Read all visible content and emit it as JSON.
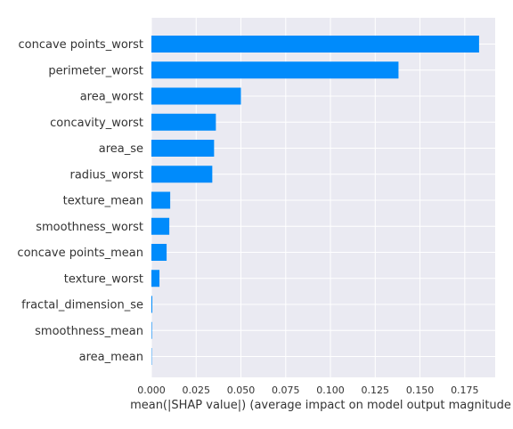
{
  "chart_data": {
    "type": "bar",
    "orientation": "horizontal",
    "categories": [
      "concave points_worst",
      "perimeter_worst",
      "area_worst",
      "concavity_worst",
      "area_se",
      "radius_worst",
      "texture_mean",
      "smoothness_worst",
      "concave points_mean",
      "texture_worst",
      "fractal_dimension_se",
      "smoothness_mean",
      "area_mean"
    ],
    "values": [
      0.183,
      0.138,
      0.05,
      0.036,
      0.035,
      0.034,
      0.0105,
      0.01,
      0.0085,
      0.0045,
      0.0005,
      0.0003,
      0.0002
    ],
    "xlabel": "mean(|SHAP value|) (average impact on model output magnitude",
    "ylabel": "",
    "title": "",
    "xlim": [
      0.0,
      0.192
    ],
    "xticks": [
      "0.000",
      "0.025",
      "0.050",
      "0.075",
      "0.100",
      "0.125",
      "0.150",
      "0.175"
    ],
    "grid": true,
    "legend": "none",
    "colors": {
      "bar": "#008bfb",
      "plot_background": "#eaeaf2",
      "grid": "#ffffff",
      "text": "#333333"
    }
  }
}
